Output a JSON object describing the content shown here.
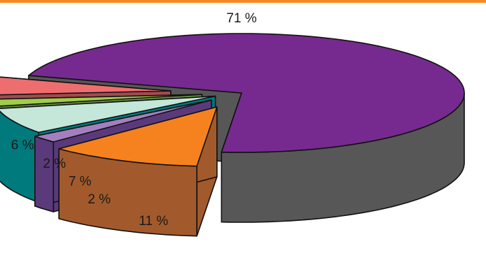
{
  "chart_data": {
    "type": "pie",
    "style": "3d-exploded",
    "title": "",
    "categories": [
      "",
      "",
      "",
      "",
      "",
      ""
    ],
    "values": [
      71,
      11,
      2,
      7,
      2,
      6
    ],
    "labels": [
      "71 %",
      "11 %",
      "2 %",
      "7 %",
      "2 %",
      "6 %"
    ],
    "colors": {
      "top": [
        "#762a8f",
        "#f5821f",
        "#a47fc0",
        "#c4e7d9",
        "#a0cd4a",
        "#ee6e70"
      ],
      "side": [
        "#575757",
        "#a25a2c",
        "#5a3a7b",
        "#007a7c",
        "#6a9142",
        "#a34a4e"
      ]
    },
    "accent_rule_color": "#f5891f",
    "legend": "none"
  }
}
